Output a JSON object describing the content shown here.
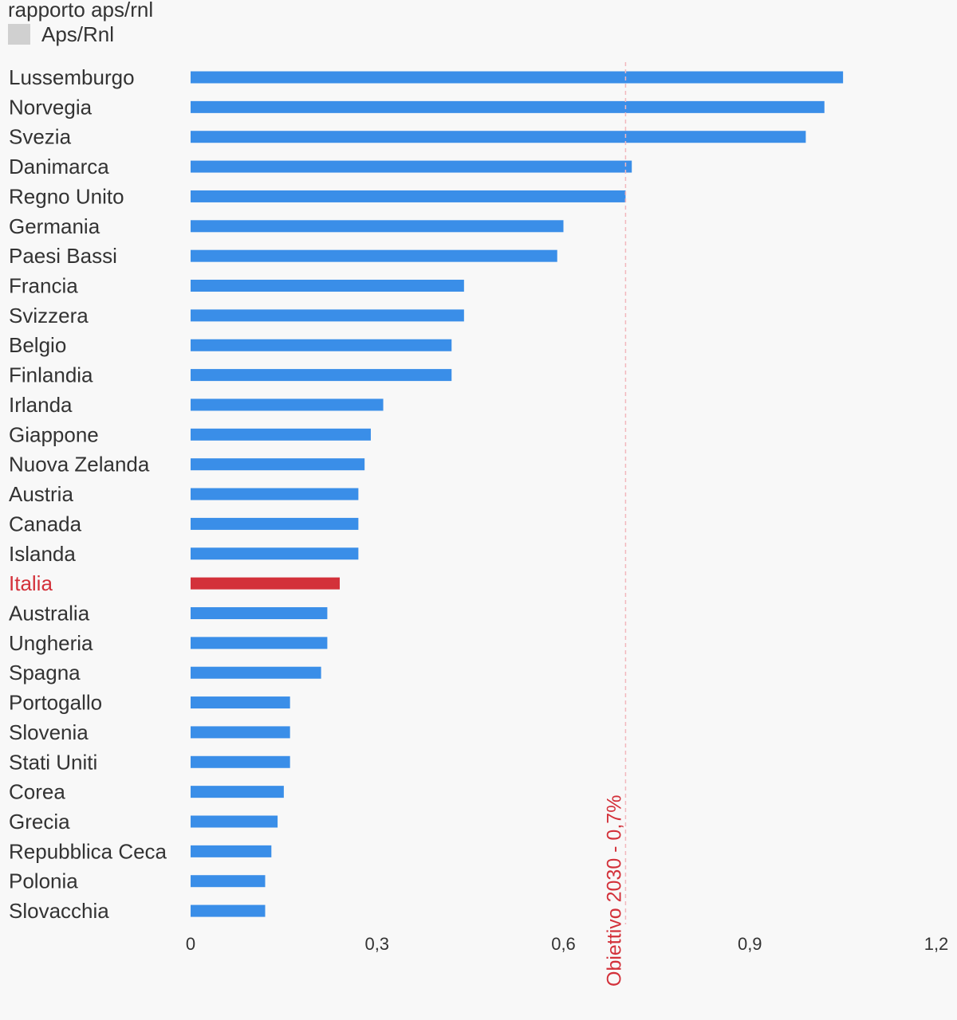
{
  "chart_data": {
    "type": "bar",
    "orientation": "horizontal",
    "title": "rapporto aps/rnl",
    "legend": [
      {
        "label": "Aps/Rnl",
        "color": "#d0d0d0"
      }
    ],
    "legend_position": "top-left",
    "categories": [
      "Lussemburgo",
      "Norvegia",
      "Svezia",
      "Danimarca",
      "Regno Unito",
      "Germania",
      "Paesi Bassi",
      "Francia",
      "Svizzera",
      "Belgio",
      "Finlandia",
      "Irlanda",
      "Giappone",
      "Nuova Zelanda",
      "Austria",
      "Canada",
      "Islanda",
      "Italia",
      "Australia",
      "Ungheria",
      "Spagna",
      "Portogallo",
      "Slovenia",
      "Stati Uniti",
      "Corea",
      "Grecia",
      "Repubblica Ceca",
      "Polonia",
      "Slovacchia"
    ],
    "series": [
      {
        "values": [
          1.05,
          1.02,
          0.99,
          0.71,
          0.7,
          0.6,
          0.59,
          0.44,
          0.44,
          0.42,
          0.42,
          0.31,
          0.29,
          0.28,
          0.27,
          0.27,
          0.27,
          0.24,
          0.22,
          0.22,
          0.21,
          0.16,
          0.16,
          0.16,
          0.15,
          0.14,
          0.13,
          0.12,
          0.12
        ]
      }
    ],
    "highlight": {
      "category": "Italia",
      "color": "#d3313a"
    },
    "bar_color": "#3a8ee8",
    "label_color": "#333333",
    "xlim": [
      0,
      1.2
    ],
    "xticks": [
      0,
      0.3,
      0.6,
      0.9,
      1.2
    ],
    "xtick_labels": [
      "0",
      "0,3",
      "0,6",
      "0,9",
      "1,2"
    ],
    "grid": false,
    "reference_line": {
      "value": 0.7,
      "label": "Obiettivo 2030 - 0,7%",
      "line_color": "#f2b8bd",
      "label_color": "#d3313a"
    }
  }
}
